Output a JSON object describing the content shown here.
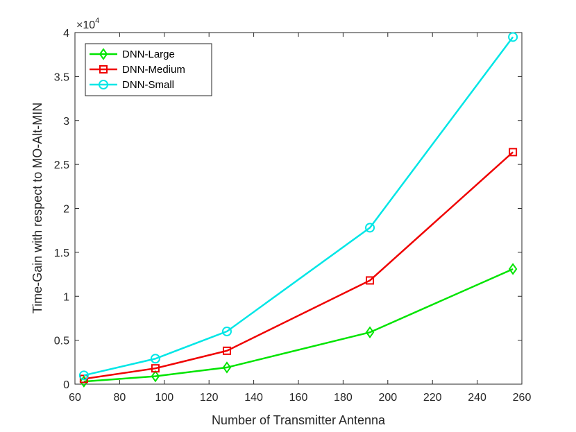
{
  "chart_data": {
    "type": "line",
    "title": "",
    "xlabel": "Number of Transmitter Antenna",
    "ylabel": "Time-Gain with respect to MO-Alt-MIN",
    "y_exponent_base": "×10",
    "y_exponent_power": "4",
    "xlim": [
      60,
      260
    ],
    "ylim": [
      0,
      4
    ],
    "x_ticks": [
      60,
      80,
      100,
      120,
      140,
      160,
      180,
      200,
      220,
      240,
      260
    ],
    "y_ticks": [
      0,
      0.5,
      1,
      1.5,
      2,
      2.5,
      3,
      3.5,
      4
    ],
    "x_tick_labels": [
      "60",
      "80",
      "100",
      "120",
      "140",
      "160",
      "180",
      "200",
      "220",
      "240",
      "260"
    ],
    "y_tick_labels": [
      "0",
      "0.5",
      "1",
      "1.5",
      "2",
      "2.5",
      "3",
      "3.5",
      "4"
    ],
    "grid": false,
    "legend_position": "top-left",
    "x": [
      64,
      96,
      128,
      192,
      256
    ],
    "series": [
      {
        "name": "DNN-Large",
        "color": "#00e400",
        "marker": "diamond",
        "values": [
          0.03,
          0.09,
          0.19,
          0.59,
          1.31
        ]
      },
      {
        "name": "DNN-Medium",
        "color": "#ef0000",
        "marker": "square",
        "values": [
          0.06,
          0.18,
          0.38,
          1.18,
          2.64
        ]
      },
      {
        "name": "DNN-Small",
        "color": "#00e6e6",
        "marker": "circle",
        "values": [
          0.1,
          0.29,
          0.6,
          1.78,
          3.95
        ]
      }
    ]
  }
}
